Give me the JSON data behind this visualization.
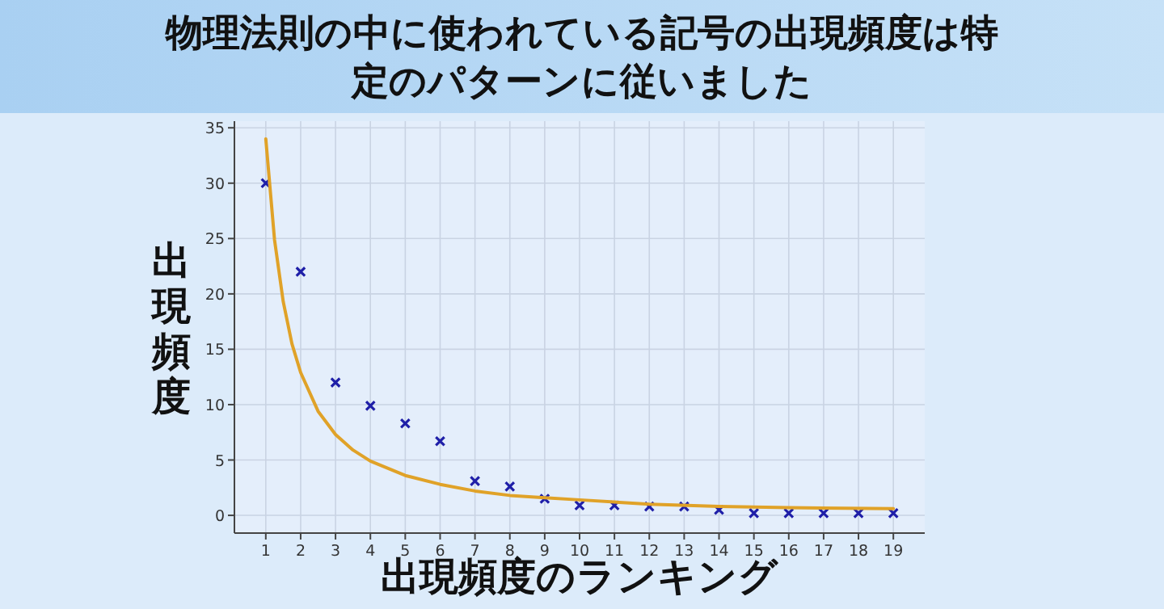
{
  "chart_data": {
    "type": "scatter",
    "title": "物理法則の中に使われている記号の出現頻度は特定のパターンに従いました",
    "xlabel": "出現頻度のランキング",
    "ylabel": "出現頻度",
    "xlim": [
      0.1,
      19.9
    ],
    "xticks": [
      1,
      2,
      3,
      4,
      5,
      6,
      7,
      8,
      9,
      10,
      11,
      12,
      13,
      14,
      15,
      16,
      17,
      18,
      19
    ],
    "ylim": [
      -1.6,
      35.6
    ],
    "yticks": [
      0,
      5,
      10,
      15,
      20,
      25,
      30,
      35
    ],
    "grid": true,
    "series": [
      {
        "marker": "cross",
        "color": "#1f1fa8",
        "x": [
          1,
          2,
          3,
          4,
          5,
          6,
          7,
          8,
          9,
          10,
          11,
          12,
          13,
          14,
          15,
          16,
          17,
          18,
          19
        ],
        "values": [
          30,
          22,
          12,
          9.9,
          8.3,
          6.7,
          3.1,
          2.6,
          1.5,
          0.9,
          0.9,
          0.8,
          0.8,
          0.5,
          0.2,
          0.2,
          0.2,
          0.2,
          0.2
        ]
      },
      {
        "type": "line",
        "color": "#e0a228",
        "x": [
          1,
          1.25,
          1.5,
          1.75,
          2,
          2.5,
          3,
          3.5,
          4,
          5,
          6,
          7,
          8,
          9,
          10,
          12,
          14,
          16,
          19
        ],
        "values": [
          34,
          24.9,
          19.3,
          15.5,
          12.9,
          9.4,
          7.3,
          5.9,
          4.9,
          3.6,
          2.8,
          2.2,
          1.8,
          1.6,
          1.4,
          1.0,
          0.8,
          0.7,
          0.6
        ]
      }
    ]
  }
}
